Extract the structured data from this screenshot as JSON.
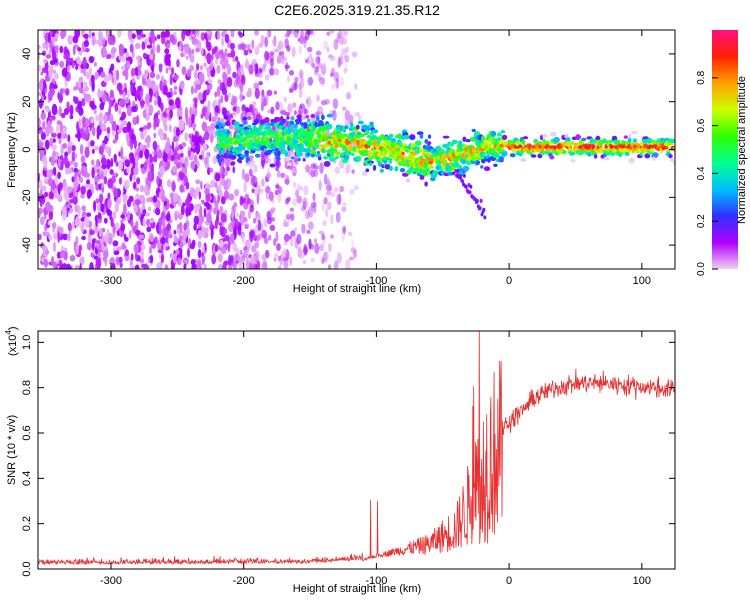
{
  "title": "C2E6.2025.319.21.35.R12",
  "chart_data": [
    {
      "type": "heatmap",
      "xlabel": "Height of straight line (km)",
      "ylabel": "Frequency (Hz)",
      "xlim": [
        -355,
        125
      ],
      "ylim": [
        -50,
        50
      ],
      "x_ticks": [
        -300,
        -200,
        -100,
        0,
        100
      ],
      "x_tick_labels": [
        "-300",
        "-200",
        "-100",
        "0",
        "100"
      ],
      "y_ticks": [
        -40,
        -20,
        0,
        20,
        40
      ],
      "y_tick_labels": [
        "-40",
        "-20",
        "0",
        "20",
        "40"
      ],
      "colorbar": {
        "label": "Normalized spectral amplitude",
        "range": [
          0,
          1
        ],
        "ticks": [
          0.0,
          0.2,
          0.4,
          0.6,
          0.8
        ],
        "tick_labels": [
          "0.0",
          "0.2",
          "0.4",
          "0.6",
          "0.8"
        ],
        "colors": [
          "#f0d0f0",
          "#b000ff",
          "#3030ff",
          "#00c0ff",
          "#00ff90",
          "#30ff00",
          "#d0ff00",
          "#ffa000",
          "#ff2000",
          "#ff1080"
        ]
      },
      "ridge": {
        "x": [
          -220,
          -200,
          -180,
          -160,
          -140,
          -120,
          -100,
          -80,
          -60,
          -45,
          -35,
          -25,
          -15,
          0,
          20,
          50,
          80,
          100,
          125
        ],
        "y": [
          4,
          4,
          5,
          5,
          4,
          3,
          1,
          -2,
          -5,
          -4,
          -2,
          0,
          1,
          1,
          1,
          1,
          1,
          1,
          1
        ]
      },
      "noise_xmax": -115,
      "grid": false
    },
    {
      "type": "line",
      "xlabel": "Height of straight line (km)",
      "ylabel": "SNR (10 * v/v)",
      "scale_label": "(x10",
      "scale_exp": "4",
      "scale_close": ")",
      "xlim": [
        -355,
        125
      ],
      "ylim": [
        0,
        1.05
      ],
      "x_ticks": [
        -300,
        -200,
        -100,
        0,
        100
      ],
      "x_tick_labels": [
        "-300",
        "-200",
        "-100",
        "0",
        "100"
      ],
      "y_ticks": [
        0.0,
        0.2,
        0.4,
        0.6,
        0.8,
        1.0
      ],
      "y_tick_labels": [
        "0.0",
        "0.2",
        "0.4",
        "0.6",
        "0.8",
        "1.0"
      ],
      "line_color": "#e83030",
      "envelope": {
        "x": [
          -355,
          -150,
          -110,
          -100,
          -80,
          -60,
          -40,
          -30,
          -25,
          -20,
          -15,
          -10,
          0,
          10,
          20,
          35,
          50,
          70,
          90,
          110,
          125
        ],
        "y": [
          0.02,
          0.025,
          0.04,
          0.06,
          0.09,
          0.12,
          0.2,
          0.33,
          0.45,
          0.5,
          0.56,
          0.6,
          0.65,
          0.7,
          0.76,
          0.8,
          0.82,
          0.82,
          0.81,
          0.8,
          0.79
        ]
      },
      "grid": false
    }
  ]
}
